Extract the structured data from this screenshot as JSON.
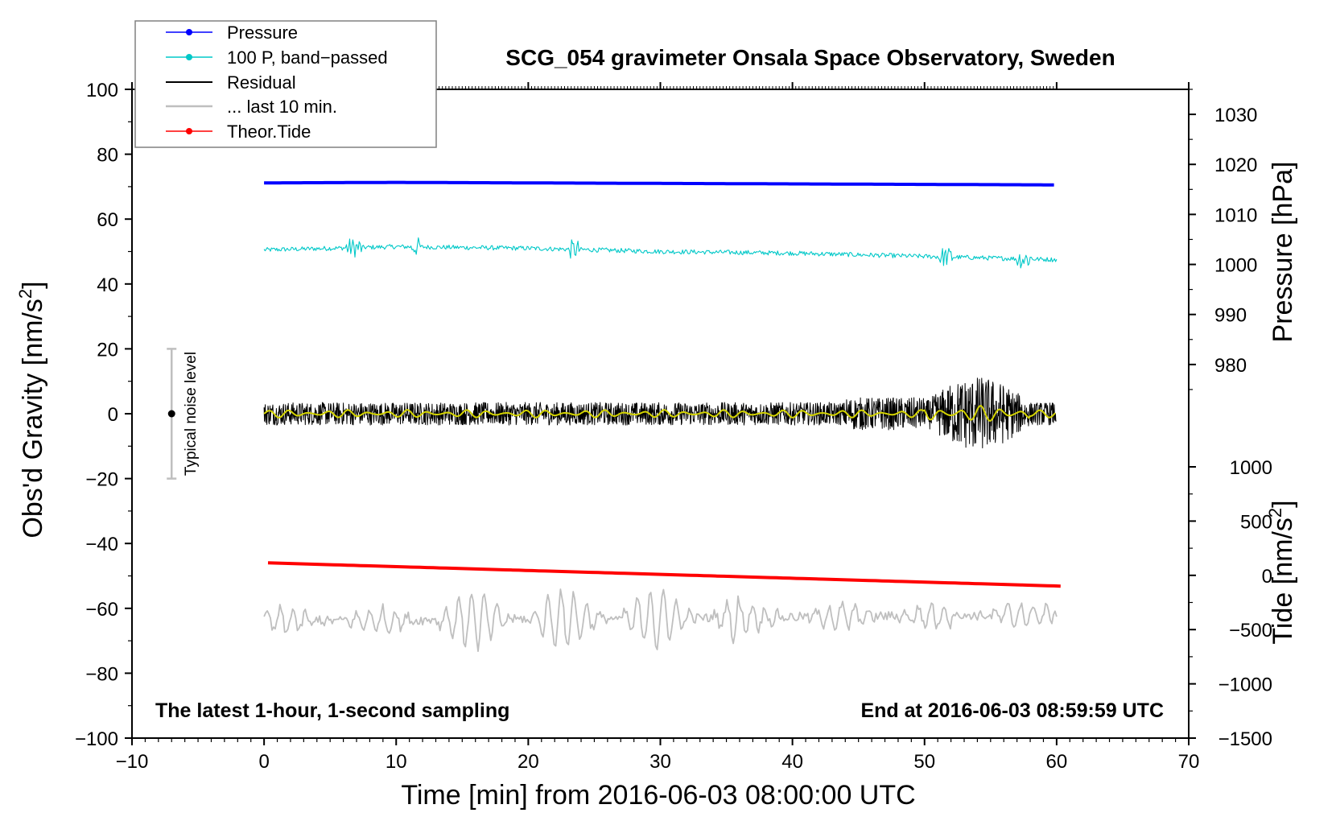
{
  "chart_data": {
    "type": "line",
    "title": "SCG_054 gravimeter Onsala Space Observatory, Sweden",
    "xlabel": "Time [min] from 2016-06-03 08:00:00 UTC",
    "ylabel_left": "Obs'd Gravity [nm/s",
    "ylabel_left_sup": "2",
    "ylabel_left_close": "]",
    "ylabel_pressure": "Pressure [hPa]",
    "ylabel_tide": "Tide [nm/s",
    "ylabel_tide_sup": "2",
    "ylabel_tide_close": "]",
    "xlim": [
      -10,
      70
    ],
    "ylim": [
      -100,
      100
    ],
    "x_ticks": [
      "−10",
      "0",
      "10",
      "20",
      "30",
      "40",
      "50",
      "60",
      "70"
    ],
    "y_ticks": [
      "100",
      "80",
      "60",
      "40",
      "20",
      "0",
      "−20",
      "−40",
      "−60",
      "−80",
      "−100"
    ],
    "pressure_axis": {
      "range": [
        970,
        1035
      ],
      "ticks": [
        "1030",
        "1020",
        "1010",
        "1000",
        "990",
        "980"
      ]
    },
    "tide_axis": {
      "range": [
        -1500,
        1000
      ],
      "ticks": [
        "1000",
        "500",
        "0",
        "−500",
        "−1000",
        "−1500"
      ]
    },
    "notes": {
      "left": "The latest 1-hour, 1-second sampling",
      "right": "End at 2016-06-03 08:59:59 UTC"
    },
    "noise_indicator": {
      "label": "Typical noise level",
      "x": -7,
      "center": 0,
      "range": [
        -20,
        20
      ]
    },
    "legend": [
      {
        "label": "Pressure",
        "color": "#0000ff",
        "marker": "dot"
      },
      {
        "label": "100 P, band−passed",
        "color": "#00c8c8",
        "marker": "dot"
      },
      {
        "label": "Residual",
        "color": "#000000",
        "marker": "none"
      },
      {
        "label": "... last 10 min.",
        "color": "#bfbfbf",
        "marker": "none"
      },
      {
        "label": "Theor.Tide",
        "color": "#ff0000",
        "marker": "dot"
      }
    ],
    "series": [
      {
        "name": "Pressure",
        "color": "#0000ff",
        "axis": "pressure",
        "x": [
          0,
          10,
          20,
          30,
          40,
          50,
          60
        ],
        "values": [
          1016.3,
          1016.4,
          1016.3,
          1016.2,
          1016.1,
          1016.0,
          1015.9
        ]
      },
      {
        "name": "100 P, band-passed",
        "color": "#00c8c8",
        "axis": "left",
        "x": [
          0,
          10,
          20,
          30,
          40,
          50,
          60
        ],
        "values": [
          50.5,
          51.5,
          51.0,
          50.0,
          49.5,
          48.5,
          47.5
        ]
      },
      {
        "name": "Residual",
        "color": "#000000",
        "axis": "left",
        "x": [
          0,
          60
        ],
        "values": [
          0,
          0
        ],
        "amplitude": [
          4,
          4
        ]
      },
      {
        "name": "Residual smoothed",
        "color": "#d4d400",
        "axis": "left",
        "x": [
          0,
          60
        ],
        "values": [
          0,
          0
        ]
      },
      {
        "name": "... last 10 min.",
        "color": "#bfbfbf",
        "axis": "left",
        "x": [
          0,
          60
        ],
        "values": [
          -64,
          -62
        ]
      },
      {
        "name": "Theor.Tide",
        "color": "#ff0000",
        "axis": "tide",
        "x": [
          0.3,
          60.5
        ],
        "values": [
          115,
          -100
        ]
      }
    ]
  }
}
